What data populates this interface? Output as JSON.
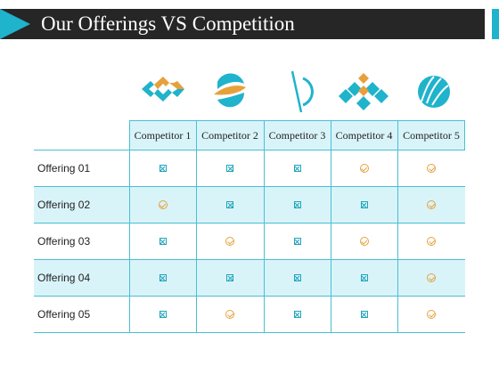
{
  "slide": {
    "title": "Our Offerings VS Competition"
  },
  "competitors": [
    {
      "label": "Competitor 1",
      "logo": "diamond-arrows-logo-icon"
    },
    {
      "label": "Competitor 2",
      "logo": "swoosh-circle-logo-icon"
    },
    {
      "label": "Competitor 3",
      "logo": "crescent-line-logo-icon"
    },
    {
      "label": "Competitor 4",
      "logo": "diamond-tiles-logo-icon"
    },
    {
      "label": "Competitor 5",
      "logo": "striped-globe-logo-icon"
    }
  ],
  "offerings": [
    {
      "label": "Offering 01",
      "cells": [
        "cross-box-icon",
        "cross-box-icon",
        "cross-box-icon",
        "check-circle-icon",
        "check-circle-icon"
      ]
    },
    {
      "label": "Offering 02",
      "cells": [
        "check-circle-icon",
        "cross-box-icon",
        "cross-box-icon",
        "cross-box-icon",
        "check-circle-icon"
      ]
    },
    {
      "label": "Offering 03",
      "cells": [
        "cross-box-icon",
        "check-circle-icon",
        "cross-box-icon",
        "check-circle-icon",
        "check-circle-icon"
      ]
    },
    {
      "label": "Offering 04",
      "cells": [
        "cross-box-icon",
        "cross-box-icon",
        "cross-box-icon",
        "cross-box-icon",
        "check-circle-icon"
      ]
    },
    {
      "label": "Offering 05",
      "cells": [
        "cross-box-icon",
        "check-circle-icon",
        "cross-box-icon",
        "cross-box-icon",
        "check-circle-icon"
      ]
    }
  ],
  "colors": {
    "accent": "#1fb3cc",
    "title_bar": "#262626",
    "check": "#e7a13b",
    "cross": "#1fa3bc",
    "row_fill": "#d9f4f9"
  }
}
